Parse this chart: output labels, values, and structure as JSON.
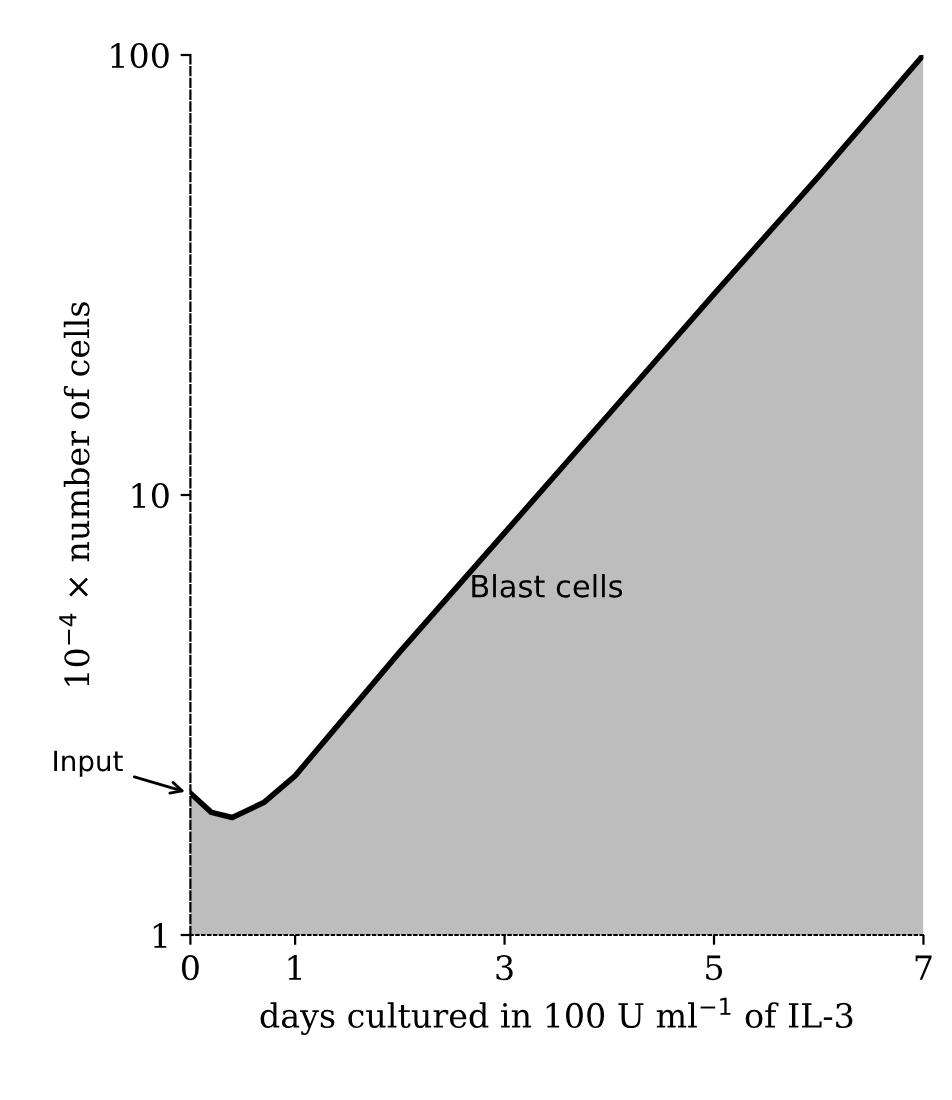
{
  "chart_data": {
    "type": "area",
    "xlabel": "days cultured in 100 U ml$^{−1}$ of IL-3",
    "ylabel": "10$^{−4}$ × number of cells",
    "log": "y",
    "xlim": [
      0,
      7
    ],
    "ylim": [
      1,
      100
    ],
    "xticks": [
      0,
      1,
      3,
      5,
      7
    ],
    "yticks": [
      1,
      10,
      100
    ],
    "grid": false,
    "legend": false,
    "series": [
      {
        "name": "Blast cells",
        "color": "#bdbdbd",
        "x": [
          0,
          0.2,
          0.4,
          0.7,
          1,
          2,
          3,
          4,
          5,
          6,
          7
        ],
        "values": [
          2.1,
          1.9,
          1.85,
          2.0,
          2.3,
          4.4,
          8.2,
          15.3,
          28.6,
          53,
          100
        ]
      }
    ],
    "annotations": [
      {
        "text": "Input",
        "x": 0,
        "y": 2.1
      }
    ]
  }
}
